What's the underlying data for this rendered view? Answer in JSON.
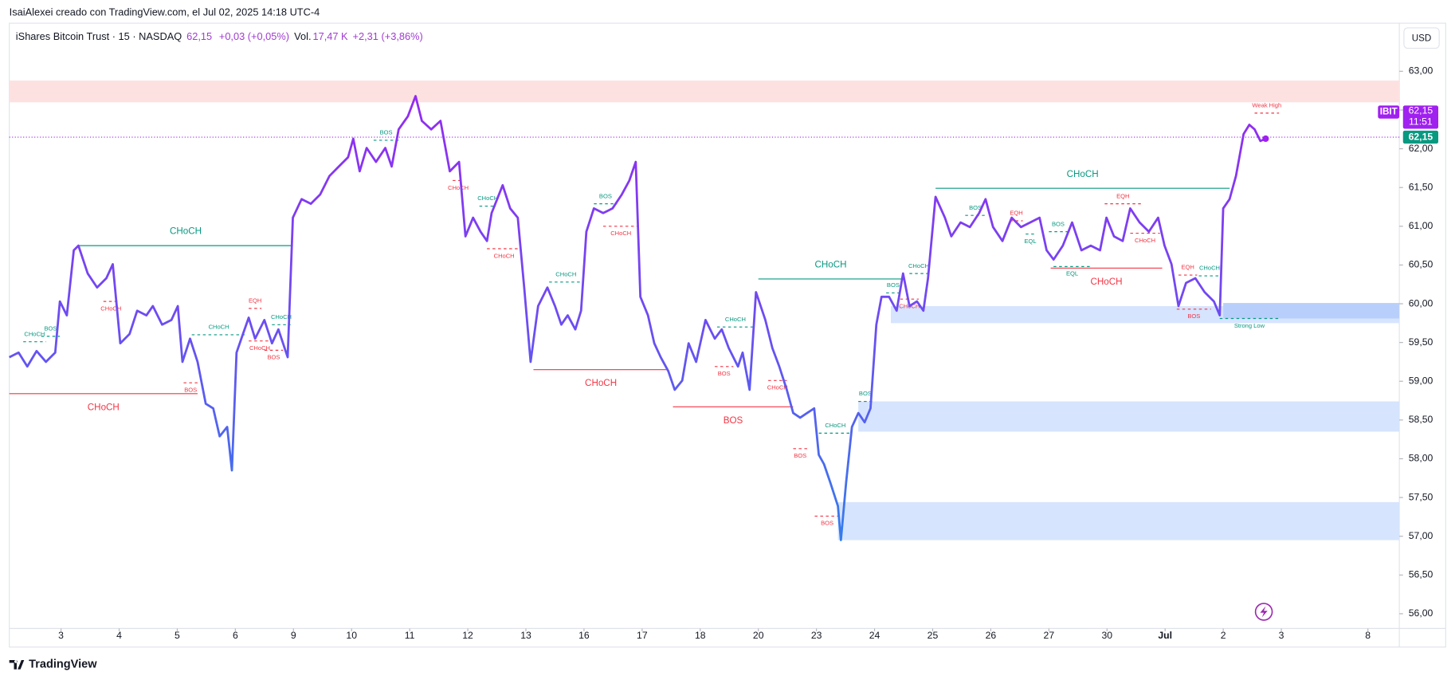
{
  "header": {
    "creator": "IsaiAlexei creado con TradingView.com, el Jul 02, 2025 14:18 UTC-4",
    "symbol": "iShares Bitcoin Trust · 15 · NASDAQ",
    "price": "62,15",
    "change": "+0,03 (+0,05%)",
    "vol_label": "Vol.",
    "vol": "17,47 K",
    "vol_change": "+2,31 (+3,86%)",
    "currency": "USD"
  },
  "footer": {
    "brand": "TradingView"
  },
  "chart_data": {
    "type": "line",
    "gradient": [
      "#a020f0",
      "#6c4df2",
      "#1e90e8"
    ],
    "xlim": [
      -0.89,
      23.03
    ],
    "ylim": [
      55.81,
      63.62
    ],
    "xticks": [
      {
        "value": 0,
        "label": "3"
      },
      {
        "value": 1,
        "label": "4"
      },
      {
        "value": 2,
        "label": "5"
      },
      {
        "value": 3,
        "label": "6"
      },
      {
        "value": 4,
        "label": "9"
      },
      {
        "value": 5,
        "label": "10"
      },
      {
        "value": 6,
        "label": "11"
      },
      {
        "value": 7,
        "label": "12"
      },
      {
        "value": 8,
        "label": "13"
      },
      {
        "value": 9,
        "label": "16"
      },
      {
        "value": 10,
        "label": "17"
      },
      {
        "value": 11,
        "label": "18"
      },
      {
        "value": 12,
        "label": "20"
      },
      {
        "value": 13,
        "label": "23"
      },
      {
        "value": 14,
        "label": "24"
      },
      {
        "value": 15,
        "label": "25"
      },
      {
        "value": 16,
        "label": "26"
      },
      {
        "value": 17,
        "label": "27"
      },
      {
        "value": 18,
        "label": "30"
      },
      {
        "value": 19,
        "label": "Jul"
      },
      {
        "value": 20,
        "label": "2"
      },
      {
        "value": 21,
        "label": "3"
      },
      {
        "value": 22.49,
        "label": "8"
      }
    ],
    "yticks": [
      {
        "value": 56,
        "label": "56,00"
      },
      {
        "value": 56.5,
        "label": "56,50"
      },
      {
        "value": 57,
        "label": "57,00"
      },
      {
        "value": 57.5,
        "label": "57,50"
      },
      {
        "value": 58,
        "label": "58,00"
      },
      {
        "value": 58.5,
        "label": "58,50"
      },
      {
        "value": 59,
        "label": "59,00"
      },
      {
        "value": 59.5,
        "label": "59,50"
      },
      {
        "value": 60,
        "label": "60,00"
      },
      {
        "value": 60.5,
        "label": "60,50"
      },
      {
        "value": 61,
        "label": "61,00"
      },
      {
        "value": 61.5,
        "label": "61,50"
      },
      {
        "value": 62,
        "label": "62,00"
      },
      {
        "value": 62.5,
        "label": "62,50"
      },
      {
        "value": 63,
        "label": "63,00"
      }
    ],
    "price_line": {
      "value": 62.15,
      "label": "62,15",
      "time": "11:51",
      "symbol": "IBIT",
      "color": "#a020f0",
      "box_color": "#089981"
    },
    "x": [
      -0.89,
      -0.73,
      -0.58,
      -0.42,
      -0.26,
      -0.1,
      -0.02,
      0.1,
      0.22,
      0.3,
      0.46,
      0.62,
      0.78,
      0.89,
      1.02,
      1.18,
      1.31,
      1.47,
      1.58,
      1.74,
      1.9,
      2.01,
      2.09,
      2.22,
      2.35,
      2.49,
      2.62,
      2.73,
      2.86,
      2.94,
      3.02,
      3.13,
      3.23,
      3.34,
      3.5,
      3.63,
      3.74,
      3.9,
      3.99,
      4.14,
      4.3,
      4.46,
      4.62,
      4.78,
      4.94,
      5.03,
      5.14,
      5.26,
      5.42,
      5.58,
      5.69,
      5.81,
      5.97,
      6.1,
      6.21,
      6.37,
      6.53,
      6.69,
      6.85,
      6.96,
      7.09,
      7.22,
      7.33,
      7.41,
      7.6,
      7.73,
      7.86,
      7.97,
      8.08,
      8.21,
      8.37,
      8.5,
      8.61,
      8.72,
      8.85,
      8.95,
      9.04,
      9.17,
      9.33,
      9.49,
      9.65,
      9.78,
      9.89,
      9.97,
      10.1,
      10.21,
      10.32,
      10.45,
      10.56,
      10.69,
      10.8,
      10.93,
      11.09,
      11.25,
      11.37,
      11.49,
      11.65,
      11.73,
      11.85,
      11.96,
      12.12,
      12.24,
      12.36,
      12.49,
      12.6,
      12.72,
      12.84,
      12.96,
      13.04,
      13.13,
      13.24,
      13.37,
      13.42,
      13.51,
      13.61,
      13.72,
      13.83,
      13.93,
      14.03,
      14.12,
      14.25,
      14.38,
      14.49,
      14.6,
      14.73,
      14.84,
      14.92,
      15.05,
      15.21,
      15.32,
      15.48,
      15.64,
      15.8,
      15.91,
      16.04,
      16.2,
      16.36,
      16.52,
      16.68,
      16.84,
      16.96,
      17.08,
      17.24,
      17.4,
      17.56,
      17.72,
      17.88,
      17.99,
      18.12,
      18.27,
      18.4,
      18.56,
      18.72,
      18.88,
      18.99,
      19.11,
      19.23,
      19.36,
      19.52,
      19.68,
      19.84,
      19.94,
      20.0,
      20.11,
      20.22,
      20.35,
      20.45,
      20.54,
      20.64,
      20.73
    ],
    "values": [
      59.31,
      59.37,
      59.19,
      59.39,
      59.25,
      59.37,
      60.03,
      59.85,
      60.69,
      60.75,
      60.39,
      60.21,
      60.33,
      60.51,
      59.49,
      59.61,
      59.91,
      59.85,
      59.97,
      59.73,
      59.79,
      59.97,
      59.25,
      59.55,
      59.25,
      58.71,
      58.65,
      58.29,
      58.41,
      57.85,
      59.37,
      59.61,
      59.82,
      59.55,
      59.79,
      59.49,
      59.67,
      59.31,
      61.11,
      61.35,
      61.29,
      61.41,
      61.65,
      61.77,
      61.89,
      62.13,
      61.71,
      62.01,
      61.83,
      62.01,
      61.77,
      62.25,
      62.42,
      62.68,
      62.36,
      62.25,
      62.36,
      61.71,
      61.83,
      60.87,
      61.11,
      60.93,
      60.81,
      61.17,
      61.53,
      61.23,
      61.11,
      60.21,
      59.25,
      59.97,
      60.21,
      59.97,
      59.73,
      59.85,
      59.67,
      59.91,
      60.93,
      61.23,
      61.17,
      61.23,
      61.41,
      61.59,
      61.83,
      60.09,
      59.85,
      59.49,
      59.31,
      59.13,
      58.89,
      59.01,
      59.49,
      59.25,
      59.79,
      59.55,
      59.67,
      59.43,
      59.19,
      59.37,
      58.89,
      60.15,
      59.79,
      59.43,
      59.19,
      58.89,
      58.59,
      58.53,
      58.59,
      58.65,
      58.05,
      57.93,
      57.69,
      57.39,
      56.95,
      57.69,
      58.41,
      58.59,
      58.47,
      58.65,
      59.73,
      60.09,
      60.09,
      59.91,
      60.39,
      59.97,
      60.03,
      59.91,
      60.33,
      61.38,
      61.11,
      60.87,
      61.05,
      60.99,
      61.17,
      61.35,
      60.99,
      60.81,
      61.11,
      60.99,
      61.05,
      61.11,
      60.69,
      60.57,
      60.75,
      61.05,
      60.69,
      60.75,
      60.69,
      61.11,
      60.87,
      60.81,
      61.23,
      61.05,
      60.93,
      61.11,
      60.75,
      60.51,
      59.97,
      60.27,
      60.33,
      60.15,
      60.03,
      59.85,
      61.23,
      61.35,
      61.65,
      62.19,
      62.31,
      62.25,
      62.1,
      62.13
    ],
    "zones": [
      {
        "x0": -0.89,
        "y0": 62.6,
        "y1": 62.88,
        "color": "#fde1e1"
      },
      {
        "x0": 14.28,
        "y0": 59.75,
        "y1": 59.97,
        "color": "#d6e4fd"
      },
      {
        "x0": 20.0,
        "y0": 59.81,
        "y1": 60.01,
        "color": "#b9cffb"
      },
      {
        "x0": 13.72,
        "y0": 58.35,
        "y1": 58.74,
        "color": "#d6e4fd"
      },
      {
        "x0": 13.37,
        "y0": 56.95,
        "y1": 57.44,
        "color": "#d6e4fd"
      }
    ],
    "structure_major": [
      {
        "label": "CHoCH",
        "x0": 0.3,
        "x1": 3.99,
        "y": 60.75,
        "color": "#089981",
        "side": "above"
      },
      {
        "label": "CHoCH",
        "x0": -0.89,
        "x1": 2.35,
        "y": 58.84,
        "color": "#f23645",
        "side": "below"
      },
      {
        "label": "CHoCH",
        "x0": 8.13,
        "x1": 10.45,
        "y": 59.15,
        "color": "#f23645",
        "side": "below"
      },
      {
        "label": "BOS",
        "x0": 10.53,
        "x1": 12.6,
        "y": 58.67,
        "color": "#f23645",
        "side": "below"
      },
      {
        "label": "CHoCH",
        "x0": 12.0,
        "x1": 14.49,
        "y": 60.32,
        "color": "#089981",
        "side": "above"
      },
      {
        "label": "CHoCH",
        "x0": 15.05,
        "x1": 20.11,
        "y": 61.49,
        "color": "#089981",
        "side": "above"
      },
      {
        "label": "CHoCH",
        "x0": 17.03,
        "x1": 18.95,
        "y": 60.46,
        "color": "#f23645",
        "side": "below"
      }
    ],
    "structure_minor": [
      {
        "label": "CHoCH",
        "x0": -0.65,
        "x1": -0.26,
        "y": 59.51,
        "color": "#089981",
        "side": "above"
      },
      {
        "label": "BOS",
        "x0": -0.34,
        "x1": -0.02,
        "y": 59.58,
        "color": "#089981",
        "side": "above"
      },
      {
        "label": "CHoCH",
        "x0": 0.73,
        "x1": 0.99,
        "y": 60.03,
        "color": "#f23645",
        "side": "below"
      },
      {
        "label": "BOS",
        "x0": 2.11,
        "x1": 2.35,
        "y": 58.98,
        "color": "#f23645",
        "side": "below"
      },
      {
        "label": "CHoCH",
        "x0": 2.25,
        "x1": 3.18,
        "y": 59.6,
        "color": "#089981",
        "side": "above"
      },
      {
        "label": "EQH",
        "x0": 3.23,
        "x1": 3.45,
        "y": 59.94,
        "color": "#f23645",
        "side": "above"
      },
      {
        "label": "CHoCH",
        "x0": 3.23,
        "x1": 3.61,
        "y": 59.52,
        "color": "#f23645",
        "side": "below"
      },
      {
        "label": "BOS",
        "x0": 3.5,
        "x1": 3.82,
        "y": 59.4,
        "color": "#f23645",
        "side": "below"
      },
      {
        "label": "CHoCH",
        "x0": 3.63,
        "x1": 3.95,
        "y": 59.73,
        "color": "#089981",
        "side": "above"
      },
      {
        "label": "BOS",
        "x0": 5.38,
        "x1": 5.81,
        "y": 62.11,
        "color": "#089981",
        "side": "above"
      },
      {
        "label": "CHoCH",
        "x0": 6.74,
        "x1": 6.93,
        "y": 61.59,
        "color": "#f23645",
        "side": "below"
      },
      {
        "label": "CHoCH",
        "x0": 7.2,
        "x1": 7.49,
        "y": 61.26,
        "color": "#089981",
        "side": "above"
      },
      {
        "label": "CHoCH",
        "x0": 7.33,
        "x1": 7.92,
        "y": 60.71,
        "color": "#f23645",
        "side": "below"
      },
      {
        "label": "CHoCH",
        "x0": 8.4,
        "x1": 8.98,
        "y": 60.28,
        "color": "#089981",
        "side": "above"
      },
      {
        "label": "BOS",
        "x0": 9.17,
        "x1": 9.57,
        "y": 61.29,
        "color": "#089981",
        "side": "above"
      },
      {
        "label": "CHoCH",
        "x0": 9.33,
        "x1": 9.94,
        "y": 61.0,
        "color": "#f23645",
        "side": "below"
      },
      {
        "label": "CHoCH",
        "x0": 11.29,
        "x1": 11.92,
        "y": 59.7,
        "color": "#089981",
        "side": "above"
      },
      {
        "label": "BOS",
        "x0": 11.25,
        "x1": 11.57,
        "y": 59.19,
        "color": "#f23645",
        "side": "below"
      },
      {
        "label": "CHoCH",
        "x0": 12.17,
        "x1": 12.49,
        "y": 59.01,
        "color": "#f23645",
        "side": "below"
      },
      {
        "label": "CHoCH",
        "x0": 13.04,
        "x1": 13.61,
        "y": 58.33,
        "color": "#089981",
        "side": "above"
      },
      {
        "label": "BOS",
        "x0": 12.6,
        "x1": 12.84,
        "y": 58.13,
        "color": "#f23645",
        "side": "below"
      },
      {
        "label": "BOS",
        "x0": 12.97,
        "x1": 13.4,
        "y": 57.26,
        "color": "#f23645",
        "side": "below"
      },
      {
        "label": "BOS",
        "x0": 13.72,
        "x1": 13.96,
        "y": 58.74,
        "color": "#089981",
        "side": "above"
      },
      {
        "label": "BOS",
        "x0": 14.2,
        "x1": 14.44,
        "y": 60.14,
        "color": "#089981",
        "side": "above"
      },
      {
        "label": "CHoCH",
        "x0": 14.6,
        "x1": 14.92,
        "y": 60.39,
        "color": "#089981",
        "side": "above"
      },
      {
        "label": "CHoCH",
        "x0": 14.44,
        "x1": 14.76,
        "y": 60.06,
        "color": "#f23645",
        "side": "below"
      },
      {
        "label": "BOS",
        "x0": 15.56,
        "x1": 15.91,
        "y": 61.14,
        "color": "#089981",
        "side": "above"
      },
      {
        "label": "EQH",
        "x0": 16.33,
        "x1": 16.55,
        "y": 61.07,
        "color": "#f23645",
        "side": "above"
      },
      {
        "label": "EQL",
        "x0": 16.6,
        "x1": 16.76,
        "y": 60.9,
        "color": "#089981",
        "side": "below"
      },
      {
        "label": "BOS",
        "x0": 17.0,
        "x1": 17.32,
        "y": 60.93,
        "color": "#089981",
        "side": "above"
      },
      {
        "label": "EQL",
        "x0": 17.08,
        "x1": 17.72,
        "y": 60.48,
        "color": "#089981",
        "side": "below"
      },
      {
        "label": "EQH",
        "x0": 17.96,
        "x1": 18.59,
        "y": 61.29,
        "color": "#f23645",
        "side": "above"
      },
      {
        "label": "CHoCH",
        "x0": 18.4,
        "x1": 18.91,
        "y": 60.91,
        "color": "#f23645",
        "side": "below"
      },
      {
        "label": "EQH",
        "x0": 19.23,
        "x1": 19.55,
        "y": 60.37,
        "color": "#f23645",
        "side": "above"
      },
      {
        "label": "CHoCH",
        "x0": 19.58,
        "x1": 19.95,
        "y": 60.36,
        "color": "#089981",
        "side": "above"
      },
      {
        "label": "BOS",
        "x0": 19.2,
        "x1": 19.79,
        "y": 59.93,
        "color": "#f23645",
        "side": "below"
      },
      {
        "label": "Weak High",
        "x0": 20.54,
        "x1": 20.96,
        "y": 62.46,
        "color": "#f23645",
        "side": "above"
      },
      {
        "label": "Strong Low",
        "x0": 19.94,
        "x1": 20.96,
        "y": 59.81,
        "color": "#089981",
        "side": "below"
      }
    ]
  }
}
